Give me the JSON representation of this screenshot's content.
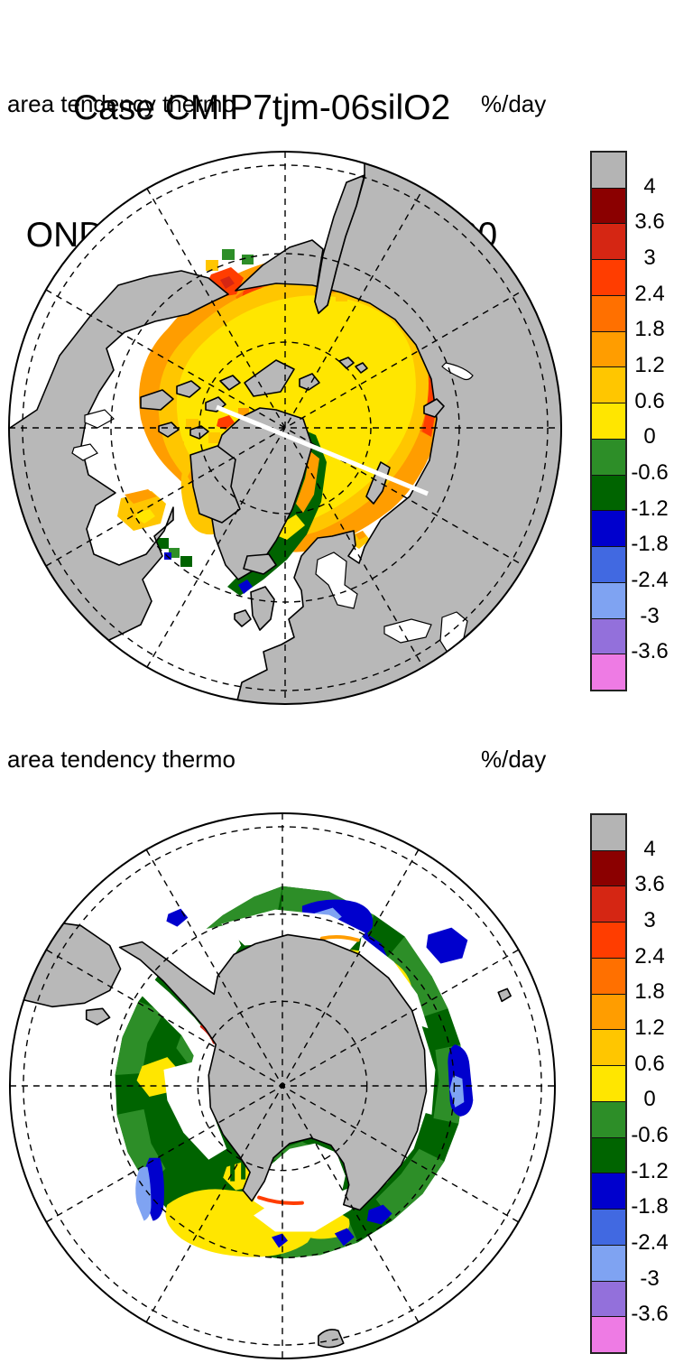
{
  "title": {
    "line1": "Case CMIP7tjm-06silO2",
    "line2": "OND Mean   Years 0090-0100"
  },
  "panels": [
    {
      "variable_label": "area tendency thermo",
      "units": "%/day",
      "hemisphere": "northern",
      "projection": "north polar stereographic"
    },
    {
      "variable_label": "area tendency thermo",
      "units": "%/day",
      "hemisphere": "southern",
      "projection": "south polar stereographic"
    }
  ],
  "colorbar": {
    "tick_labels": [
      "4",
      "3.6",
      "3",
      "2.4",
      "1.8",
      "1.2",
      "0.6",
      "0",
      "-0.6",
      "-1.2",
      "-1.8",
      "-2.4",
      "-3",
      "-3.6"
    ],
    "colors": [
      "#b4b4b4",
      "#8b0000",
      "#d52613",
      "#ff3d00",
      "#ff7000",
      "#ff9d00",
      "#ffc600",
      "#ffe600",
      "#2d8e28",
      "#006400",
      "#0000cd",
      "#4169e1",
      "#7fa3f2",
      "#9370db",
      "#ee7be4"
    ],
    "bars_shown": 2
  },
  "map_colors": {
    "land": "#b8b8b8",
    "ocean": "#ffffff",
    "coastline": "#000000",
    "graticule": "#000000",
    "missing_transect": "#ffffff"
  },
  "chart_data": {
    "type": "heatmap",
    "title": "Case CMIP7tjm-06silO2 — OND Mean, Years 0090-0100",
    "variable": "area tendency thermo",
    "units": "%/day",
    "contour_levels": [
      4,
      3.6,
      3,
      2.4,
      1.8,
      1.2,
      0.6,
      0,
      -0.6,
      -1.2,
      -1.8,
      -2.4,
      -3,
      -3.6
    ],
    "palette_top_to_bottom": [
      "#b4b4b4",
      "#8b0000",
      "#d52613",
      "#ff3d00",
      "#ff7000",
      "#ff9d00",
      "#ffc600",
      "#ffe600",
      "#2d8e28",
      "#006400",
      "#0000cd",
      "#4169e1",
      "#7fa3f2",
      "#9370db",
      "#ee7be4"
    ],
    "legend_position": "right",
    "panels": [
      {
        "name": "Arctic",
        "summary": "Central Arctic Ocean pack ~0 to 0.6 %/day (yellow) ringed by 0.6–2.4 %/day (gold/orange) along the Siberian, Chukchi and Baffin margins with small >3 %/day red spots near coasts; negative values -0.6 to -1.2 %/day (greens) along East Greenland, Labrador, Bering and Okhotsk ice edges; white diagonal missing-data transect through the pole; land gray, open ocean white."
      },
      {
        "name": "Antarctic",
        "summary": "Circumpolar ice band mostly -0.6 to -1.2 %/day (dark green) with 0 to -0.6 %/day (mid green) on its outer edge; 0 to 0.6 %/day yellow patches in the Ross/Amundsen sector and near the coast at top right; -1.2 to -3 %/day blue patches at the outer edge (top, right and lower left, some -2.4 to -3 light blue); thin red/orange slivers hugging the coastline; white coastal polynya gap around gray Antarctica."
      }
    ]
  }
}
